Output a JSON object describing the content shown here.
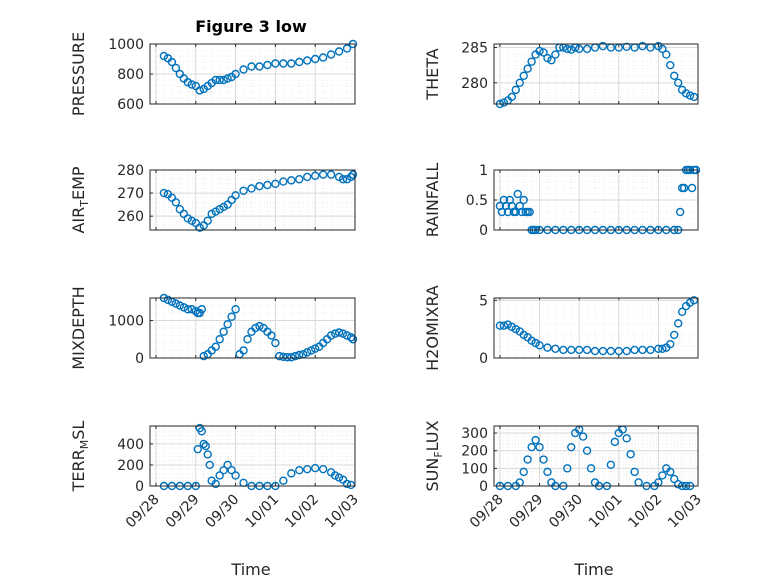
{
  "figure": {
    "title": "Figure 3 low",
    "xlabel": "Time"
  },
  "colors": {
    "marker": "#0072BD",
    "grid": "#d9d9d9",
    "axis": "#262626"
  },
  "chart_data": [
    {
      "type": "scatter",
      "ylabel": "PRESSURE",
      "ylim": [
        600,
        1000
      ],
      "yticks": [
        600,
        800,
        1000
      ],
      "grid": true,
      "x_ticks": [
        "09/28",
        "09/29",
        "09/30",
        "10/01",
        "10/02",
        "10/03"
      ],
      "xlim": [
        -0.15,
        5.0
      ],
      "x": [
        0.2,
        0.3,
        0.4,
        0.5,
        0.6,
        0.7,
        0.8,
        0.9,
        1.0,
        1.1,
        1.2,
        1.3,
        1.4,
        1.5,
        1.6,
        1.7,
        1.8,
        1.9,
        2.0,
        2.2,
        2.4,
        2.6,
        2.8,
        3.0,
        3.2,
        3.4,
        3.6,
        3.8,
        4.0,
        4.2,
        4.4,
        4.6,
        4.8,
        4.95
      ],
      "series": [
        {
          "values": [
            920,
            905,
            880,
            840,
            800,
            770,
            745,
            730,
            720,
            690,
            700,
            720,
            740,
            760,
            760,
            760,
            770,
            780,
            800,
            830,
            850,
            850,
            860,
            870,
            870,
            870,
            880,
            890,
            900,
            910,
            930,
            950,
            970,
            1000
          ]
        }
      ]
    },
    {
      "type": "scatter",
      "ylabel": "THETA",
      "ylim": [
        277,
        285.5
      ],
      "yticks": [
        280,
        285
      ],
      "grid": true,
      "x_ticks": [
        "09/28",
        "09/29",
        "09/30",
        "10/01",
        "10/02",
        "10/03"
      ],
      "xlim": [
        -0.15,
        5.0
      ],
      "x": [
        0.0,
        0.1,
        0.2,
        0.3,
        0.4,
        0.5,
        0.6,
        0.7,
        0.8,
        0.9,
        1.0,
        1.1,
        1.2,
        1.3,
        1.4,
        1.5,
        1.6,
        1.7,
        1.8,
        1.9,
        2.0,
        2.2,
        2.4,
        2.6,
        2.8,
        3.0,
        3.2,
        3.4,
        3.6,
        3.8,
        4.0,
        4.1,
        4.2,
        4.3,
        4.4,
        4.5,
        4.6,
        4.7,
        4.8,
        4.9
      ],
      "series": [
        {
          "values": [
            277.0,
            277.2,
            277.5,
            278.0,
            279.0,
            280.0,
            281.0,
            282.0,
            283.0,
            284.0,
            284.5,
            284.3,
            283.5,
            283.2,
            284.0,
            285.0,
            285.0,
            284.8,
            284.7,
            285.0,
            284.8,
            284.8,
            285.0,
            285.2,
            285.0,
            285.0,
            285.1,
            285.0,
            285.2,
            285.0,
            285.2,
            284.8,
            284.0,
            282.5,
            281.0,
            280.0,
            279.0,
            278.5,
            278.2,
            278.0
          ]
        }
      ]
    },
    {
      "type": "scatter",
      "ylabel": "AIR_TEMP",
      "ylim": [
        254,
        280
      ],
      "yticks": [
        260,
        270,
        280
      ],
      "grid": true,
      "x_ticks": [
        "09/28",
        "09/29",
        "09/30",
        "10/01",
        "10/02",
        "10/03"
      ],
      "xlim": [
        -0.15,
        5.0
      ],
      "x": [
        0.2,
        0.3,
        0.4,
        0.5,
        0.6,
        0.7,
        0.8,
        0.9,
        1.0,
        1.1,
        1.2,
        1.3,
        1.4,
        1.5,
        1.6,
        1.7,
        1.8,
        1.9,
        2.0,
        2.2,
        2.4,
        2.6,
        2.8,
        3.0,
        3.2,
        3.4,
        3.6,
        3.8,
        4.0,
        4.2,
        4.4,
        4.6,
        4.7,
        4.8,
        4.9,
        4.95
      ],
      "series": [
        {
          "values": [
            270,
            269.5,
            268,
            266,
            263,
            261,
            259,
            258,
            257,
            255,
            256,
            258,
            261,
            262,
            263,
            264,
            265,
            267,
            269,
            271,
            272,
            273,
            273.5,
            274,
            275,
            275.5,
            276,
            277,
            277.5,
            278,
            278,
            277,
            276,
            276,
            277,
            278
          ]
        }
      ]
    },
    {
      "type": "scatter",
      "ylabel": "RAINFALL",
      "ylim": [
        0,
        1
      ],
      "yticks": [
        0,
        0.5,
        1
      ],
      "grid": true,
      "x_ticks": [
        "09/28",
        "09/29",
        "09/30",
        "10/01",
        "10/02",
        "10/03"
      ],
      "xlim": [
        -0.15,
        5.0
      ],
      "x": [
        0.0,
        0.05,
        0.1,
        0.15,
        0.2,
        0.25,
        0.3,
        0.35,
        0.4,
        0.45,
        0.5,
        0.55,
        0.6,
        0.65,
        0.7,
        0.75,
        0.8,
        0.85,
        0.9,
        1.0,
        1.2,
        1.4,
        1.6,
        1.8,
        2.0,
        2.2,
        2.4,
        2.6,
        2.8,
        3.0,
        3.2,
        3.4,
        3.6,
        3.8,
        4.0,
        4.2,
        4.4,
        4.5,
        4.55,
        4.6,
        4.65,
        4.7,
        4.75,
        4.8,
        4.85,
        4.9,
        4.95
      ],
      "series": [
        {
          "values": [
            0.4,
            0.3,
            0.5,
            0.4,
            0.3,
            0.5,
            0.4,
            0.3,
            0.3,
            0.6,
            0.4,
            0.3,
            0.5,
            0.3,
            0.3,
            0.3,
            0.0,
            0.0,
            0.0,
            0.0,
            0.0,
            0.0,
            0.0,
            0.0,
            0.0,
            0.0,
            0.0,
            0.0,
            0.0,
            0.0,
            0.0,
            0.0,
            0.0,
            0.0,
            0.0,
            0.0,
            0.0,
            0.0,
            0.3,
            0.7,
            0.7,
            1.0,
            1.0,
            1.0,
            0.7,
            1.0,
            1.0
          ]
        }
      ]
    },
    {
      "type": "scatter",
      "ylabel": "MIXDEPTH",
      "ylim": [
        0,
        1600
      ],
      "yticks": [
        0,
        1000
      ],
      "grid": true,
      "x_ticks": [
        "09/28",
        "09/29",
        "09/30",
        "10/01",
        "10/02",
        "10/03"
      ],
      "xlim": [
        -0.15,
        5.0
      ],
      "x": [
        0.2,
        0.3,
        0.4,
        0.5,
        0.6,
        0.7,
        0.8,
        0.9,
        1.0,
        1.05,
        1.1,
        1.15,
        1.2,
        1.3,
        1.4,
        1.5,
        1.6,
        1.7,
        1.8,
        1.9,
        2.0,
        2.1,
        2.2,
        2.3,
        2.4,
        2.5,
        2.6,
        2.7,
        2.8,
        2.9,
        3.0,
        3.1,
        3.2,
        3.3,
        3.4,
        3.5,
        3.6,
        3.7,
        3.8,
        3.9,
        4.0,
        4.1,
        4.2,
        4.3,
        4.4,
        4.5,
        4.6,
        4.7,
        4.8,
        4.9,
        4.95
      ],
      "series": [
        {
          "values": [
            1600,
            1550,
            1500,
            1450,
            1400,
            1350,
            1300,
            1300,
            1250,
            1200,
            1200,
            1300,
            50,
            100,
            200,
            300,
            500,
            700,
            900,
            1100,
            1300,
            100,
            200,
            500,
            700,
            800,
            850,
            800,
            700,
            600,
            400,
            50,
            30,
            20,
            20,
            50,
            80,
            100,
            150,
            200,
            250,
            300,
            400,
            500,
            600,
            650,
            680,
            650,
            600,
            550,
            500
          ]
        }
      ]
    },
    {
      "type": "scatter",
      "ylabel": "H2OMIXRA",
      "ylim": [
        0,
        5.2
      ],
      "yticks": [
        0,
        5
      ],
      "grid": true,
      "x_ticks": [
        "09/28",
        "09/29",
        "09/30",
        "10/01",
        "10/02",
        "10/03"
      ],
      "xlim": [
        -0.15,
        5.0
      ],
      "x": [
        0.0,
        0.1,
        0.2,
        0.3,
        0.4,
        0.5,
        0.6,
        0.7,
        0.8,
        0.9,
        1.0,
        1.2,
        1.4,
        1.6,
        1.8,
        2.0,
        2.2,
        2.4,
        2.6,
        2.8,
        3.0,
        3.2,
        3.4,
        3.6,
        3.8,
        4.0,
        4.1,
        4.2,
        4.3,
        4.4,
        4.5,
        4.6,
        4.7,
        4.8,
        4.9
      ],
      "series": [
        {
          "values": [
            2.8,
            2.8,
            2.9,
            2.7,
            2.5,
            2.3,
            2.0,
            1.8,
            1.5,
            1.3,
            1.1,
            0.9,
            0.8,
            0.7,
            0.7,
            0.7,
            0.7,
            0.6,
            0.6,
            0.6,
            0.6,
            0.6,
            0.7,
            0.7,
            0.7,
            0.8,
            0.8,
            0.9,
            1.2,
            2.0,
            3.0,
            4.0,
            4.5,
            4.8,
            5.0
          ]
        }
      ]
    },
    {
      "type": "scatter",
      "ylabel": "TERR_MSL",
      "ylim": [
        0,
        570
      ],
      "yticks": [
        0,
        200,
        400
      ],
      "grid": true,
      "x_ticks": [
        "09/28",
        "09/29",
        "09/30",
        "10/01",
        "10/02",
        "10/03"
      ],
      "xlim": [
        -0.15,
        5.0
      ],
      "x": [
        0.2,
        0.4,
        0.6,
        0.8,
        1.0,
        1.05,
        1.1,
        1.15,
        1.2,
        1.25,
        1.3,
        1.35,
        1.4,
        1.5,
        1.6,
        1.7,
        1.8,
        1.9,
        2.0,
        2.2,
        2.4,
        2.6,
        2.8,
        3.0,
        3.2,
        3.4,
        3.6,
        3.8,
        4.0,
        4.2,
        4.4,
        4.5,
        4.6,
        4.7,
        4.8,
        4.9
      ],
      "series": [
        {
          "values": [
            0,
            0,
            0,
            0,
            0,
            350,
            550,
            520,
            400,
            380,
            300,
            200,
            50,
            20,
            100,
            150,
            200,
            150,
            100,
            30,
            0,
            0,
            0,
            0,
            50,
            120,
            150,
            160,
            170,
            160,
            130,
            100,
            80,
            60,
            20,
            10
          ]
        }
      ]
    },
    {
      "type": "scatter",
      "ylabel": "SUN_FLUX",
      "ylim": [
        0,
        340
      ],
      "yticks": [
        0,
        100,
        200,
        300
      ],
      "grid": true,
      "x_ticks": [
        "09/28",
        "09/29",
        "09/30",
        "10/01",
        "10/02",
        "10/03"
      ],
      "xlim": [
        -0.15,
        5.0
      ],
      "x": [
        0.0,
        0.2,
        0.4,
        0.5,
        0.6,
        0.7,
        0.8,
        0.9,
        1.0,
        1.1,
        1.2,
        1.3,
        1.4,
        1.6,
        1.7,
        1.8,
        1.9,
        2.0,
        2.1,
        2.2,
        2.3,
        2.4,
        2.5,
        2.7,
        2.8,
        2.9,
        3.0,
        3.1,
        3.2,
        3.3,
        3.4,
        3.5,
        3.7,
        3.9,
        4.0,
        4.1,
        4.2,
        4.3,
        4.4,
        4.5,
        4.6,
        4.7,
        4.8
      ],
      "series": [
        {
          "values": [
            0,
            0,
            0,
            20,
            80,
            150,
            220,
            260,
            220,
            150,
            80,
            20,
            0,
            0,
            100,
            220,
            300,
            320,
            280,
            200,
            100,
            20,
            0,
            0,
            120,
            250,
            300,
            320,
            270,
            180,
            80,
            20,
            0,
            0,
            20,
            60,
            100,
            80,
            40,
            10,
            0,
            0,
            0
          ]
        }
      ]
    }
  ]
}
